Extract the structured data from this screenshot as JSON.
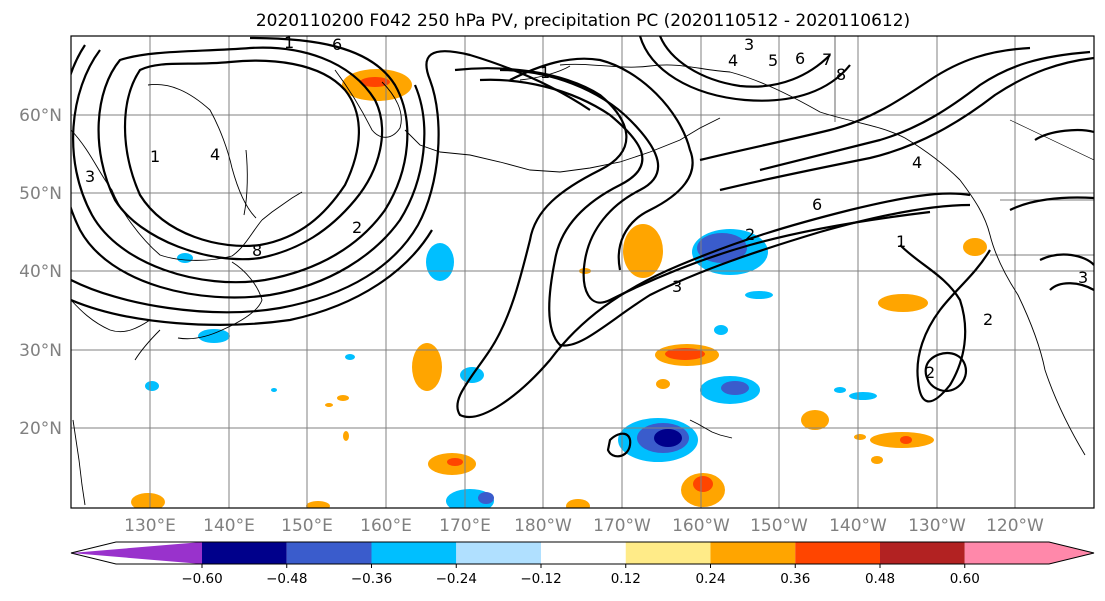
{
  "title": "2020110200 F042 250 hPa PV, precipitation PC (2020110512 - 2020110612)",
  "lat_labels": [
    "60°N",
    "50°N",
    "40°N",
    "30°N",
    "20°N"
  ],
  "lon_labels": [
    "130°E",
    "140°E",
    "150°E",
    "160°E",
    "170°E",
    "180°W",
    "170°W",
    "160°W",
    "150°W",
    "140°W",
    "130°W",
    "120°W"
  ],
  "colorbar": {
    "colors": [
      "#9932cc",
      "#00008b",
      "#3a5ccc",
      "#00bfff",
      "#b0e0ff",
      "#ffffff",
      "#ffeb88",
      "#ffa500",
      "#ff4500",
      "#b22222",
      "#ff88aa"
    ],
    "tick_labels": [
      "−0.60",
      "−0.48",
      "−0.36",
      "−0.24",
      "−0.12",
      "0.12",
      "0.24",
      "0.36",
      "0.48",
      "0.60"
    ]
  },
  "contour_labels": [
    "1",
    "6",
    "3",
    "4",
    "5",
    "6",
    "7",
    "8",
    "1",
    "2",
    "3",
    "4",
    "1",
    "8",
    "2",
    "3",
    "6",
    "1",
    "2",
    "2",
    "3",
    "4"
  ]
}
